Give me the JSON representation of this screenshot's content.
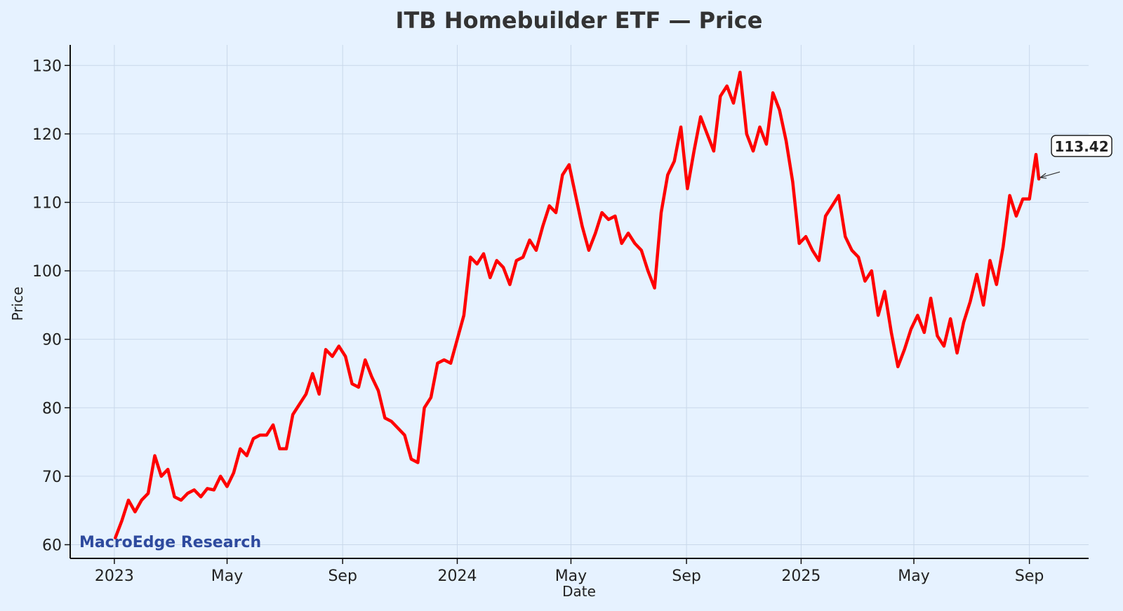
{
  "chart_data": {
    "type": "line",
    "title": "ITB Homebuilder ETF — Price",
    "xlabel": "Date",
    "ylabel": "Price",
    "ylim": [
      58,
      133
    ],
    "xlim": [
      "2022-11-15",
      "2025-11-03"
    ],
    "yticks": [
      60,
      70,
      80,
      90,
      100,
      110,
      120,
      130
    ],
    "xticks": [
      {
        "date": "2023-01-01",
        "label": "2023"
      },
      {
        "date": "2023-05-01",
        "label": "May"
      },
      {
        "date": "2023-09-01",
        "label": "Sep"
      },
      {
        "date": "2024-01-01",
        "label": "2024"
      },
      {
        "date": "2024-05-01",
        "label": "May"
      },
      {
        "date": "2024-09-01",
        "label": "Sep"
      },
      {
        "date": "2025-01-01",
        "label": "2025"
      },
      {
        "date": "2025-05-01",
        "label": "May"
      },
      {
        "date": "2025-09-01",
        "label": "Sep"
      }
    ],
    "grid": true,
    "series": [
      {
        "color": "#ff0000",
        "points": [
          [
            "2023-01-02",
            61.0
          ],
          [
            "2023-01-09",
            63.5
          ],
          [
            "2023-01-16",
            66.5
          ],
          [
            "2023-01-23",
            64.8
          ],
          [
            "2023-01-30",
            66.5
          ],
          [
            "2023-02-06",
            67.5
          ],
          [
            "2023-02-13",
            73.0
          ],
          [
            "2023-02-20",
            70.0
          ],
          [
            "2023-02-27",
            71.0
          ],
          [
            "2023-03-06",
            67.0
          ],
          [
            "2023-03-13",
            66.5
          ],
          [
            "2023-03-20",
            67.5
          ],
          [
            "2023-03-27",
            68.0
          ],
          [
            "2023-04-03",
            67.0
          ],
          [
            "2023-04-10",
            68.2
          ],
          [
            "2023-04-17",
            68.0
          ],
          [
            "2023-04-24",
            70.0
          ],
          [
            "2023-05-01",
            68.5
          ],
          [
            "2023-05-08",
            70.5
          ],
          [
            "2023-05-15",
            74.0
          ],
          [
            "2023-05-22",
            73.0
          ],
          [
            "2023-05-29",
            75.5
          ],
          [
            "2023-06-05",
            76.0
          ],
          [
            "2023-06-12",
            76.0
          ],
          [
            "2023-06-19",
            77.5
          ],
          [
            "2023-06-26",
            74.0
          ],
          [
            "2023-07-03",
            74.0
          ],
          [
            "2023-07-10",
            79.0
          ],
          [
            "2023-07-17",
            80.5
          ],
          [
            "2023-07-24",
            82.0
          ],
          [
            "2023-07-31",
            85.0
          ],
          [
            "2023-08-07",
            82.0
          ],
          [
            "2023-08-14",
            88.5
          ],
          [
            "2023-08-21",
            87.5
          ],
          [
            "2023-08-28",
            89.0
          ],
          [
            "2023-09-04",
            87.5
          ],
          [
            "2023-09-11",
            83.5
          ],
          [
            "2023-09-18",
            83.0
          ],
          [
            "2023-09-25",
            87.0
          ],
          [
            "2023-10-02",
            84.5
          ],
          [
            "2023-10-09",
            82.5
          ],
          [
            "2023-10-16",
            78.5
          ],
          [
            "2023-10-23",
            78.0
          ],
          [
            "2023-10-30",
            77.0
          ],
          [
            "2023-11-06",
            76.0
          ],
          [
            "2023-11-13",
            72.5
          ],
          [
            "2023-11-20",
            72.0
          ],
          [
            "2023-11-27",
            80.0
          ],
          [
            "2023-12-04",
            81.5
          ],
          [
            "2023-12-11",
            86.5
          ],
          [
            "2023-12-18",
            87.0
          ],
          [
            "2023-12-25",
            86.5
          ],
          [
            "2024-01-01",
            90.0
          ],
          [
            "2024-01-08",
            93.5
          ],
          [
            "2024-01-15",
            102.0
          ],
          [
            "2024-01-22",
            101.0
          ],
          [
            "2024-01-29",
            102.5
          ],
          [
            "2024-02-05",
            99.0
          ],
          [
            "2024-02-12",
            101.5
          ],
          [
            "2024-02-19",
            100.5
          ],
          [
            "2024-02-26",
            98.0
          ],
          [
            "2024-03-04",
            101.5
          ],
          [
            "2024-03-11",
            102.0
          ],
          [
            "2024-03-18",
            104.5
          ],
          [
            "2024-03-25",
            103.0
          ],
          [
            "2024-04-01",
            106.5
          ],
          [
            "2024-04-08",
            109.5
          ],
          [
            "2024-04-15",
            108.5
          ],
          [
            "2024-04-22",
            114.0
          ],
          [
            "2024-04-29",
            115.5
          ],
          [
            "2024-05-06",
            111.0
          ],
          [
            "2024-05-13",
            106.5
          ],
          [
            "2024-05-20",
            103.0
          ],
          [
            "2024-05-27",
            105.5
          ],
          [
            "2024-06-03",
            108.5
          ],
          [
            "2024-06-10",
            107.5
          ],
          [
            "2024-06-17",
            108.0
          ],
          [
            "2024-06-24",
            104.0
          ],
          [
            "2024-07-01",
            105.5
          ],
          [
            "2024-07-08",
            104.0
          ],
          [
            "2024-07-15",
            103.0
          ],
          [
            "2024-07-22",
            100.0
          ],
          [
            "2024-07-29",
            97.5
          ],
          [
            "2024-08-05",
            108.5
          ],
          [
            "2024-08-12",
            114.0
          ],
          [
            "2024-08-19",
            116.0
          ],
          [
            "2024-08-26",
            121.0
          ],
          [
            "2024-09-02",
            112.0
          ],
          [
            "2024-09-09",
            117.5
          ],
          [
            "2024-09-16",
            122.5
          ],
          [
            "2024-09-23",
            120.0
          ],
          [
            "2024-09-30",
            117.5
          ],
          [
            "2024-10-07",
            125.5
          ],
          [
            "2024-10-14",
            127.0
          ],
          [
            "2024-10-21",
            124.5
          ],
          [
            "2024-10-28",
            129.0
          ],
          [
            "2024-11-04",
            120.0
          ],
          [
            "2024-11-11",
            117.5
          ],
          [
            "2024-11-18",
            121.0
          ],
          [
            "2024-11-25",
            118.5
          ],
          [
            "2024-12-02",
            126.0
          ],
          [
            "2024-12-09",
            123.5
          ],
          [
            "2024-12-16",
            119.0
          ],
          [
            "2024-12-23",
            113.0
          ],
          [
            "2024-12-30",
            104.0
          ],
          [
            "2025-01-06",
            105.0
          ],
          [
            "2025-01-13",
            103.0
          ],
          [
            "2025-01-20",
            101.5
          ],
          [
            "2025-01-27",
            108.0
          ],
          [
            "2025-02-03",
            109.5
          ],
          [
            "2025-02-10",
            111.0
          ],
          [
            "2025-02-17",
            105.0
          ],
          [
            "2025-02-24",
            103.0
          ],
          [
            "2025-03-03",
            102.0
          ],
          [
            "2025-03-10",
            98.5
          ],
          [
            "2025-03-17",
            100.0
          ],
          [
            "2025-03-24",
            93.5
          ],
          [
            "2025-03-31",
            97.0
          ],
          [
            "2025-04-07",
            91.0
          ],
          [
            "2025-04-14",
            86.0
          ],
          [
            "2025-04-21",
            88.5
          ],
          [
            "2025-04-28",
            91.5
          ],
          [
            "2025-05-05",
            93.5
          ],
          [
            "2025-05-12",
            91.0
          ],
          [
            "2025-05-19",
            96.0
          ],
          [
            "2025-05-26",
            90.5
          ],
          [
            "2025-06-02",
            89.0
          ],
          [
            "2025-06-09",
            93.0
          ],
          [
            "2025-06-16",
            88.0
          ],
          [
            "2025-06-23",
            92.5
          ],
          [
            "2025-06-30",
            95.5
          ],
          [
            "2025-07-07",
            99.5
          ],
          [
            "2025-07-14",
            95.0
          ],
          [
            "2025-07-21",
            101.5
          ],
          [
            "2025-07-28",
            98.0
          ],
          [
            "2025-08-04",
            103.5
          ],
          [
            "2025-08-11",
            111.0
          ],
          [
            "2025-08-18",
            108.0
          ],
          [
            "2025-08-25",
            110.5
          ],
          [
            "2025-09-01",
            110.5
          ],
          [
            "2025-09-08",
            117.0
          ],
          [
            "2025-09-11",
            113.42
          ]
        ]
      }
    ],
    "annotations": [
      {
        "text": "113.42",
        "date": "2025-09-11",
        "value": 113.42
      }
    ],
    "watermark": "MacroEdge Research",
    "watermark_color": "#2e4a9e"
  }
}
